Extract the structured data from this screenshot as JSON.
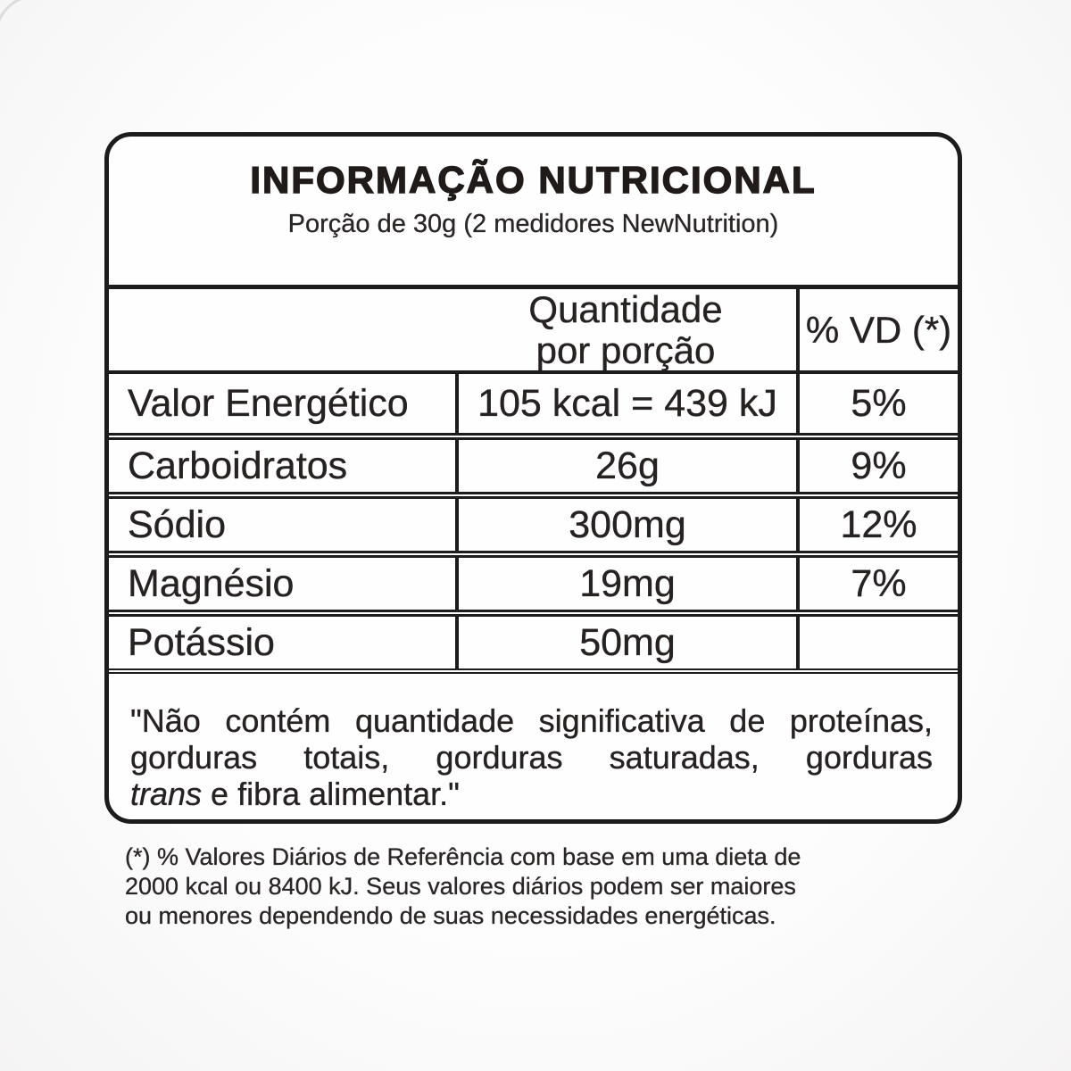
{
  "label": {
    "title": "INFORMAÇÃO NUTRICIONAL",
    "subtitle": "Porção de 30g (2 medidores NewNutrition)",
    "header": {
      "quantity_line1": "Quantidade",
      "quantity_line2": "por porção",
      "daily_value": "% VD (*)"
    },
    "rows": [
      {
        "name": "Valor Energético",
        "amount": "105 kcal = 439 kJ",
        "dv": "5%"
      },
      {
        "name": "Carboidratos",
        "amount": "26g",
        "dv": "9%"
      },
      {
        "name": "Sódio",
        "amount": "300mg",
        "dv": "12%"
      },
      {
        "name": "Magnésio",
        "amount": "19mg",
        "dv": "7%"
      },
      {
        "name": "Potássio",
        "amount": "50mg",
        "dv": ""
      }
    ],
    "note": {
      "line1": "\"Não contém quantidade significativa de proteínas,",
      "line2": "gorduras totais, gorduras saturadas, gorduras",
      "line3_italic": "trans",
      "line3_rest": " e fibra alimentar.\""
    },
    "footnote_lines": [
      "(*) % Valores Diários de Referência com base em uma dieta de",
      "2000 kcal ou 8400 kJ. Seus valores diários podem ser maiores",
      "ou menores dependendo de suas necessidades energéticas."
    ]
  },
  "colors": {
    "border": "#1c1c1c",
    "text": "#262221",
    "background": "#fcfcfc"
  }
}
